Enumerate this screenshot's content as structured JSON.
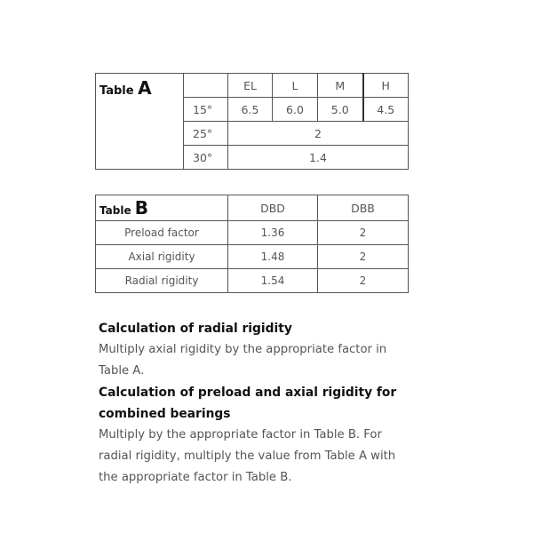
{
  "table_a": {
    "label": "Table",
    "letter": "A",
    "columns": [
      "EL",
      "L",
      "M",
      "H"
    ],
    "rows": [
      {
        "angle": "15°",
        "values": [
          "6.5",
          "6.0",
          "5.0",
          "4.5"
        ]
      },
      {
        "angle": "25°",
        "value": "2"
      },
      {
        "angle": "30°",
        "value": "1.4"
      }
    ]
  },
  "table_b": {
    "label": "Table",
    "letter": "B",
    "columns": [
      "DBD",
      "DBB"
    ],
    "rows": [
      {
        "name": "Preload factor",
        "values": [
          "1.36",
          "2"
        ]
      },
      {
        "name": "Axial rigidity",
        "values": [
          "1.48",
          "2"
        ]
      },
      {
        "name": "Radial rigidity",
        "values": [
          "1.54",
          "2"
        ]
      }
    ]
  },
  "text": {
    "h1": "Calculation of radial rigidity",
    "p1": "Multiply axial rigidity by the appropriate factor in Table A.",
    "h2": "Calculation of preload and axial rigidity for combined bearings",
    "p2": "Multiply by the appropriate factor in Table B. For radial rigidity, multiply the value from Table A with the appropriate factor in Table B."
  }
}
